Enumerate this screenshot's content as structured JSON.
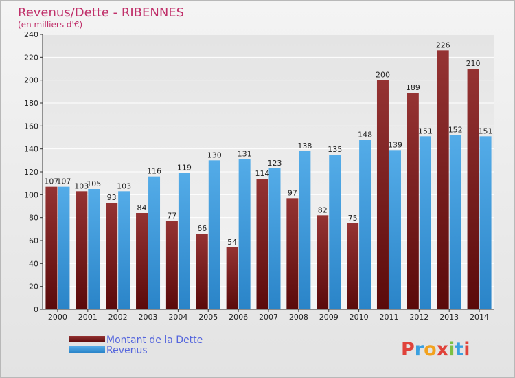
{
  "chart_data": {
    "type": "bar",
    "title": "Revenus/Dette - RIBENNES",
    "subtitle": "(en milliers d'€)",
    "categories": [
      "2000",
      "2001",
      "2002",
      "2003",
      "2004",
      "2005",
      "2006",
      "2007",
      "2008",
      "2009",
      "2010",
      "2011",
      "2012",
      "2013",
      "2014"
    ],
    "series": [
      {
        "name": "Montant de la Dette",
        "color": "#7a1e1e",
        "values": [
          107,
          103,
          93,
          84,
          77,
          66,
          54,
          114,
          97,
          82,
          75,
          200,
          189,
          226,
          210
        ]
      },
      {
        "name": "Revenus",
        "color": "#3d9be0",
        "values": [
          107,
          105,
          103,
          116,
          119,
          130,
          131,
          123,
          138,
          135,
          148,
          139,
          151,
          152,
          151
        ]
      }
    ],
    "ylim": [
      0,
      240
    ],
    "yticks": [
      0,
      20,
      40,
      60,
      80,
      100,
      120,
      140,
      160,
      180,
      200,
      220,
      240
    ],
    "grid": true,
    "legend_position": "bottom-left"
  },
  "logo": {
    "text": "Proxiti"
  }
}
